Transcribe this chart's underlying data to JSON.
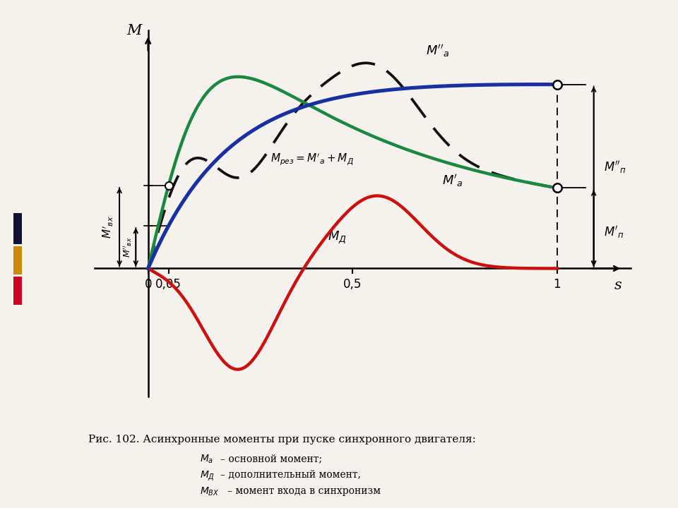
{
  "background_color": "#f5f2ee",
  "xlabel": "s",
  "ylabel": "M",
  "xlim": [
    -0.13,
    1.18
  ],
  "ylim": [
    -0.58,
    1.08
  ],
  "color_blue": "#1830a0",
  "color_green": "#1a8840",
  "color_red": "#cc1010",
  "color_dashed": "#111111",
  "curve_lw": 3.2,
  "x_tick_labels": [
    "0",
    "0,05",
    "0,5",
    "1"
  ],
  "x_tick_pos": [
    0.0,
    0.05,
    0.5,
    1.0
  ],
  "caption_line1": "Рис. 102. Асинхронные моменты при пуске синхронного двигателя:",
  "caption_line2": "– основной момент;",
  "caption_line3": "– дополнительный момент,",
  "caption_line4": "– момент входа в синхронизм"
}
